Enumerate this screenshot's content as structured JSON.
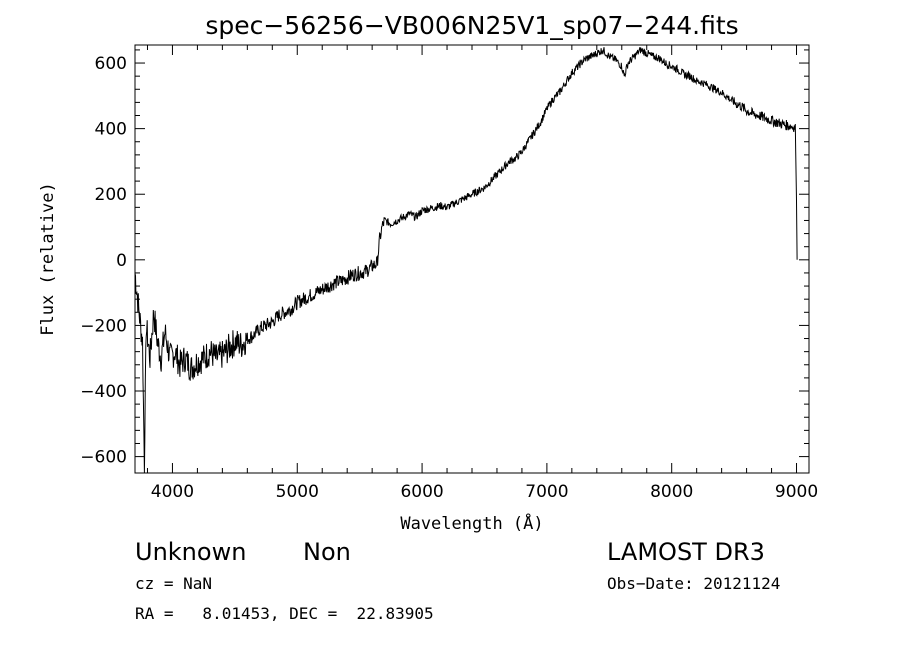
{
  "chart_data": {
    "type": "line",
    "title": "spec−56256−VB006N25V1_sp07−244.fits",
    "xlabel": "Wavelength (Å)",
    "ylabel": "Flux (relative)",
    "xlim": [
      3700,
      9100
    ],
    "ylim": [
      -650,
      655
    ],
    "xticks": [
      4000,
      5000,
      6000,
      7000,
      8000,
      9000
    ],
    "yticks": [
      -600,
      -400,
      -200,
      0,
      200,
      400,
      600
    ],
    "ytick_labels": [
      "−600",
      "−400",
      "−200",
      "0",
      "200",
      "400",
      "600"
    ],
    "series": [
      {
        "name": "flux",
        "x": [
          3700,
          3730,
          3760,
          3775,
          3790,
          3820,
          3850,
          3880,
          3910,
          3940,
          3980,
          4020,
          4060,
          4100,
          4150,
          4200,
          4250,
          4300,
          4350,
          4400,
          4450,
          4500,
          4550,
          4600,
          4650,
          4700,
          4750,
          4800,
          4850,
          4900,
          4950,
          5000,
          5050,
          5100,
          5150,
          5200,
          5250,
          5300,
          5350,
          5400,
          5450,
          5500,
          5550,
          5600,
          5640,
          5660,
          5680,
          5700,
          5750,
          5800,
          5850,
          5900,
          5950,
          6000,
          6050,
          6100,
          6150,
          6200,
          6250,
          6300,
          6350,
          6400,
          6450,
          6500,
          6550,
          6600,
          6650,
          6700,
          6750,
          6800,
          6850,
          6900,
          6950,
          7000,
          7050,
          7100,
          7150,
          7200,
          7250,
          7300,
          7350,
          7400,
          7450,
          7500,
          7550,
          7600,
          7620,
          7650,
          7700,
          7750,
          7800,
          7850,
          7900,
          7950,
          8000,
          8050,
          8100,
          8150,
          8200,
          8250,
          8300,
          8350,
          8400,
          8450,
          8500,
          8550,
          8600,
          8650,
          8700,
          8750,
          8800,
          8850,
          8900,
          8950,
          8990,
          9000,
          9005
        ],
        "y": [
          -40,
          -150,
          -250,
          -620,
          -200,
          -300,
          -160,
          -250,
          -300,
          -220,
          -300,
          -280,
          -320,
          -300,
          -330,
          -310,
          -300,
          -280,
          -300,
          -290,
          -270,
          -250,
          -260,
          -240,
          -230,
          -210,
          -200,
          -190,
          -170,
          -160,
          -150,
          -130,
          -120,
          -110,
          -100,
          -90,
          -80,
          -70,
          -65,
          -55,
          -45,
          -40,
          -35,
          -20,
          -10,
          60,
          100,
          120,
          110,
          120,
          130,
          140,
          130,
          150,
          155,
          160,
          165,
          160,
          170,
          180,
          190,
          200,
          210,
          220,
          240,
          260,
          280,
          300,
          310,
          330,
          360,
          390,
          420,
          460,
          490,
          510,
          540,
          570,
          590,
          610,
          620,
          630,
          640,
          620,
          610,
          590,
          560,
          600,
          620,
          640,
          630,
          620,
          615,
          600,
          590,
          580,
          565,
          560,
          545,
          540,
          530,
          520,
          510,
          495,
          480,
          470,
          455,
          445,
          440,
          432,
          425,
          418,
          412,
          408,
          405,
          180,
          0
        ]
      }
    ]
  },
  "info": {
    "object_class": "Unknown",
    "object_subclass": "Non",
    "survey": "LAMOST DR3",
    "cz": "cz = NaN",
    "obs_date": "Obs−Date: 20121124",
    "coords": "RA =   8.01453, DEC =  22.83905"
  }
}
